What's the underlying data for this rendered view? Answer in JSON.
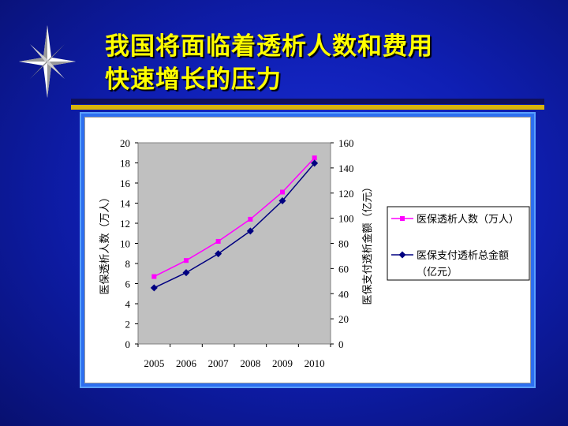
{
  "slide": {
    "title_line1": "我国将面临着透析人数和费用",
    "title_line2": "快速增长的压力"
  },
  "colors": {
    "title": "#ffff00",
    "patients_series": "#ff00ff",
    "cost_series": "#000080",
    "plot_bg": "#c0c0c0"
  },
  "chart_data": {
    "type": "line",
    "x": [
      "2005",
      "2006",
      "2007",
      "2008",
      "2009",
      "2010"
    ],
    "y_left": {
      "label": "医保透析人数（万人）",
      "ticks": [
        "0",
        "2",
        "4",
        "6",
        "8",
        "10",
        "12",
        "14",
        "16",
        "18",
        "20"
      ],
      "range": [
        0,
        20
      ]
    },
    "y_right": {
      "label": "医保支付透析金额（亿元）",
      "ticks": [
        "0",
        "20",
        "40",
        "60",
        "80",
        "100",
        "120",
        "140",
        "160"
      ],
      "range": [
        0,
        160
      ]
    },
    "series": [
      {
        "name": "医保透析人数（万人）",
        "axis": "left",
        "marker": "square",
        "values": [
          6.7,
          8.3,
          10.2,
          12.4,
          15.1,
          18.5
        ]
      },
      {
        "name": "医保支付透析总金额（亿元）",
        "axis": "right",
        "marker": "diamond",
        "values": [
          44.6,
          56.7,
          71.8,
          89.8,
          113.9,
          143.8
        ]
      }
    ],
    "legend": {
      "position": "right",
      "entries": [
        {
          "line1": "医保透析人数（万人）",
          "line2": ""
        },
        {
          "line1": "医保支付透析总金额",
          "line2": "（亿元）"
        }
      ]
    },
    "grid": false
  }
}
